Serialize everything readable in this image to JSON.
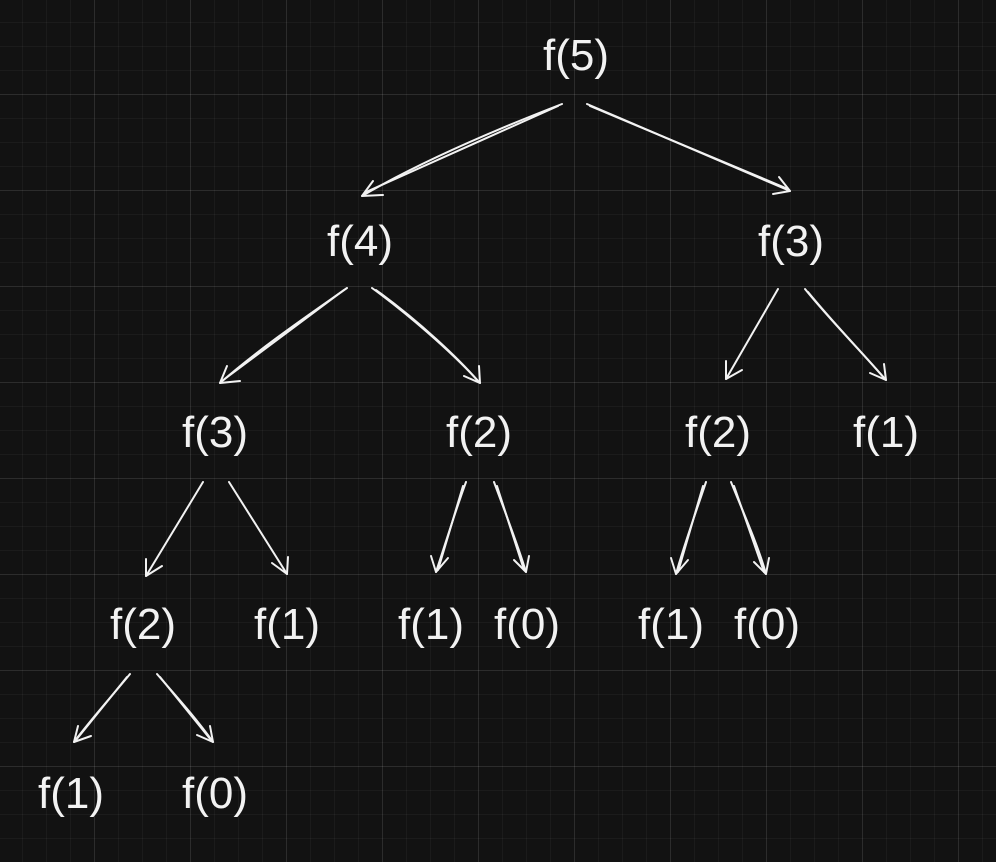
{
  "nodes": {
    "n_root": "f(5)",
    "n_l": "f(4)",
    "n_r": "f(3)",
    "n_ll": "f(3)",
    "n_lr": "f(2)",
    "n_rl": "f(2)",
    "n_rr": "f(1)",
    "n_lll": "f(2)",
    "n_llr": "f(1)",
    "n_lrl": "f(1)",
    "n_lrr": "f(0)",
    "n_rll": "f(1)",
    "n_rlr": "f(0)",
    "n_llll": "f(1)",
    "n_lllr": "f(0)"
  },
  "colors": {
    "background": "#121212",
    "stroke": "#f2f2f2"
  }
}
